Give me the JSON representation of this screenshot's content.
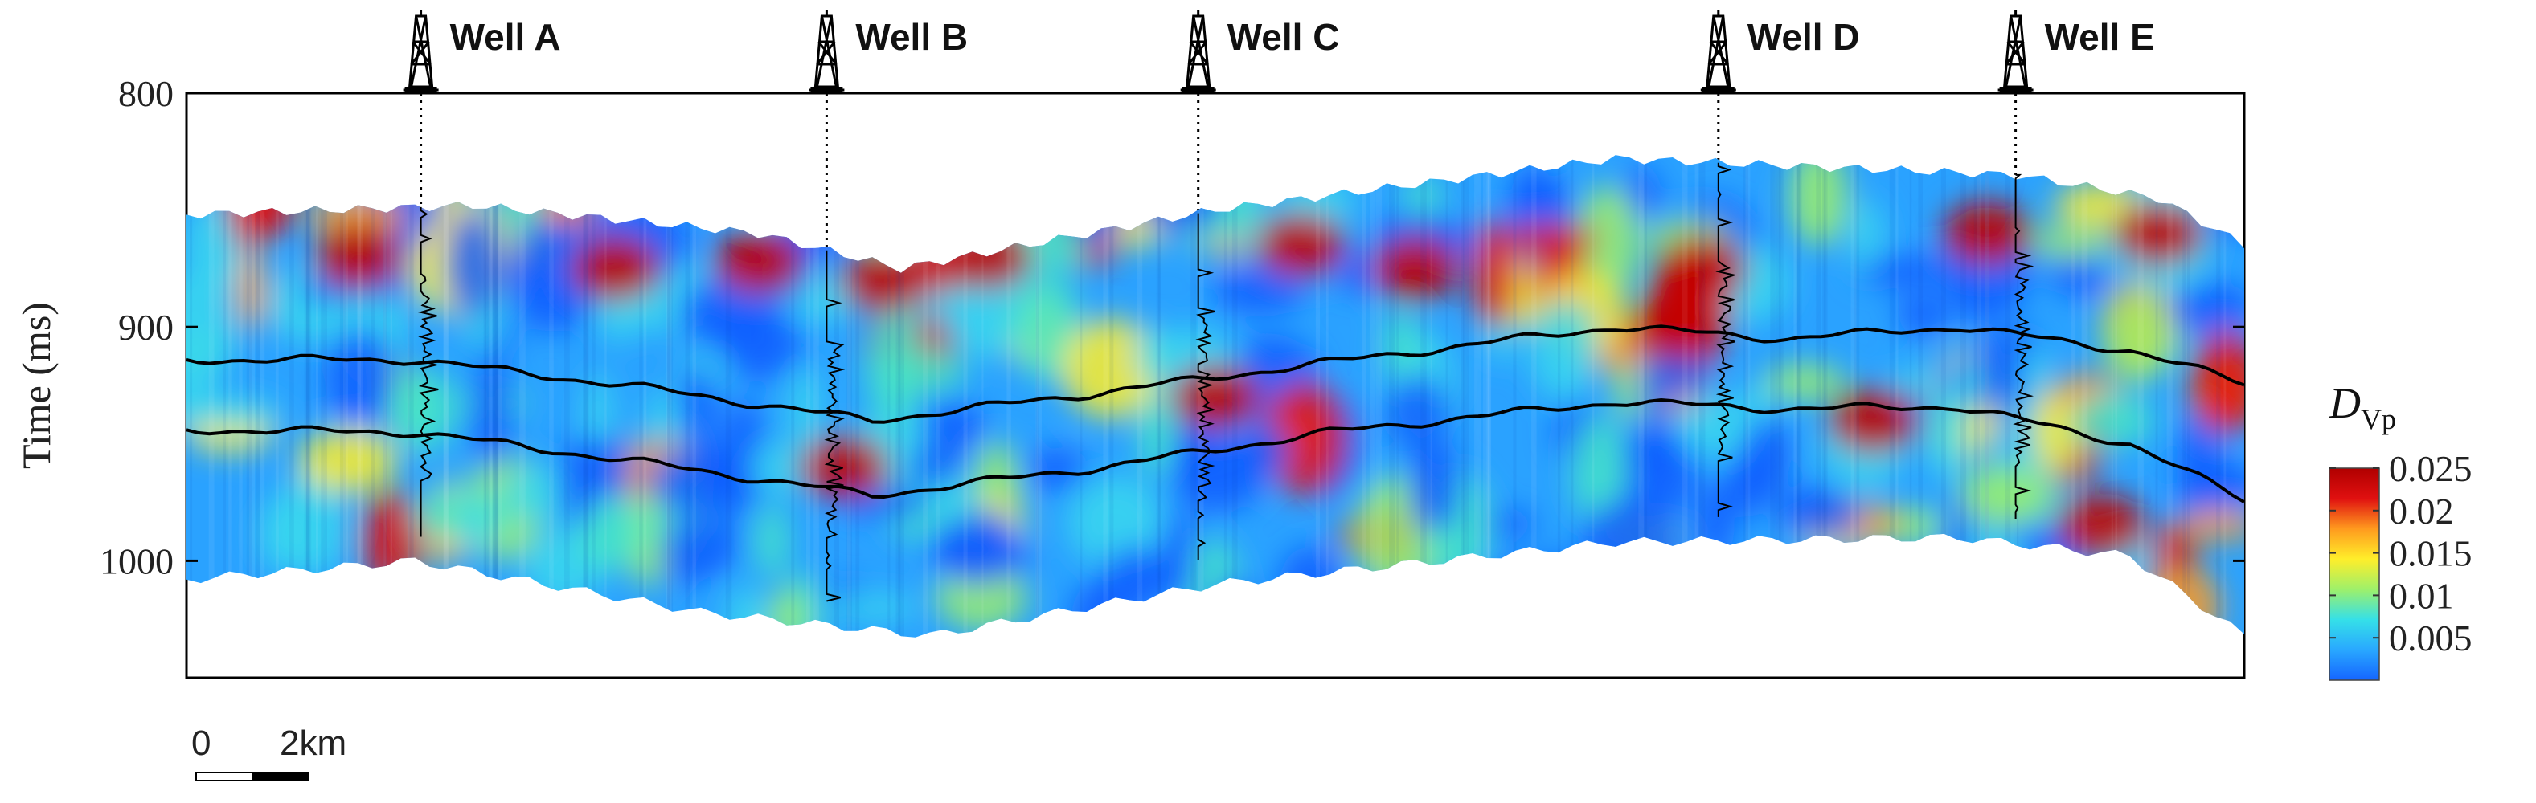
{
  "chart_data": {
    "type": "heatmap",
    "title": "",
    "ylabel": "Time (ms)",
    "ylim": [
      800,
      1050
    ],
    "yticks": [
      800,
      900,
      1000
    ],
    "colorbar": {
      "label_main": "D",
      "label_sub": "Vp",
      "range": [
        0,
        0.025
      ],
      "ticks": [
        0.005,
        0.01,
        0.015,
        0.02,
        0.025
      ],
      "tick_labels": [
        "0.005",
        "0.01",
        "0.015",
        "0.02",
        "0.025"
      ],
      "colors": [
        "#1565ff",
        "#29a8ff",
        "#35e0e8",
        "#9ef06a",
        "#ffee2a",
        "#ff9a1e",
        "#e01010",
        "#b00000"
      ]
    },
    "wells": [
      {
        "name": "Well A",
        "x_km": 4.1
      },
      {
        "name": "Well B",
        "x_km": 11.2
      },
      {
        "name": "Well C",
        "x_km": 17.7
      },
      {
        "name": "Well D",
        "x_km": 26.8
      },
      {
        "name": "Well E",
        "x_km": 32.0
      }
    ],
    "x_extent_km": [
      0,
      36
    ],
    "section_top_ms": [
      [
        0,
        852
      ],
      [
        5,
        848
      ],
      [
        10,
        860
      ],
      [
        12.5,
        875
      ],
      [
        18,
        850
      ],
      [
        25,
        828
      ],
      [
        32,
        835
      ],
      [
        34.5,
        845
      ],
      [
        36,
        865
      ]
    ],
    "section_bottom_ms": [
      [
        0,
        1008
      ],
      [
        4,
        1000
      ],
      [
        9,
        1022
      ],
      [
        13,
        1032
      ],
      [
        18,
        1010
      ],
      [
        25,
        992
      ],
      [
        31,
        990
      ],
      [
        34,
        998
      ],
      [
        36,
        1032
      ]
    ],
    "horizon_upper_ms": [
      [
        0,
        914
      ],
      [
        4,
        914
      ],
      [
        8,
        926
      ],
      [
        12,
        940
      ],
      [
        16,
        928
      ],
      [
        20,
        915
      ],
      [
        25,
        900
      ],
      [
        28,
        905
      ],
      [
        31,
        900
      ],
      [
        34,
        910
      ],
      [
        36,
        924
      ]
    ],
    "horizon_lower_ms": [
      [
        0,
        944
      ],
      [
        4,
        945
      ],
      [
        8,
        958
      ],
      [
        12,
        972
      ],
      [
        16,
        960
      ],
      [
        20,
        945
      ],
      [
        25,
        932
      ],
      [
        28,
        935
      ],
      [
        31,
        934
      ],
      [
        34,
        950
      ],
      [
        36,
        974
      ]
    ],
    "scale_bar": {
      "labels": [
        "0",
        "2km"
      ]
    }
  }
}
